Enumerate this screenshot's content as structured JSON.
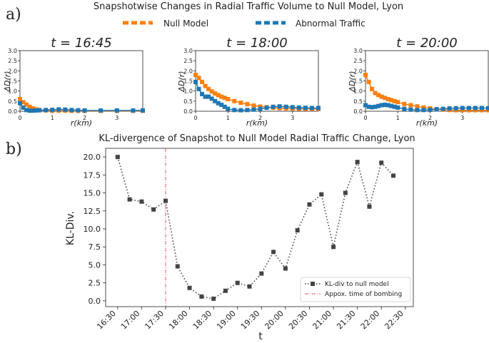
{
  "panel_a_label": "a)",
  "panel_b_label": "b)",
  "colors": {
    "null_model": "#ff7f0e",
    "abnormal": "#1f77b4",
    "kl_line": "#444444",
    "bombing": "#e8585a"
  },
  "chart_data": [
    {
      "type": "line",
      "title": "Snapshotwise Changes in Radial Traffic Volume to Null Model, Lyon",
      "legend": [
        "Null Model",
        "Abnormal Traffic"
      ],
      "xlabel": "r(km)",
      "ylabel": "ΔD(r)",
      "xlim": [
        0,
        3.8
      ],
      "ylim": [
        0,
        3.0
      ],
      "xticks": [
        "0",
        "1",
        "2",
        "3"
      ],
      "yticks": [
        "0.0",
        "0.5",
        "1.0",
        "1.5",
        "2.0",
        "2.5",
        "3.0"
      ],
      "subplots": [
        {
          "label": "t = 16:45",
          "x": [
            0.0,
            0.1,
            0.2,
            0.3,
            0.4,
            0.5,
            0.6,
            0.8,
            1.0,
            1.2,
            1.4,
            1.6,
            1.8,
            2.0,
            2.5,
            3.0,
            3.5,
            3.8
          ],
          "series": [
            {
              "name": "Null Model",
              "values": [
                0.6,
                0.45,
                0.33,
                0.22,
                0.14,
                0.09,
                0.06,
                0.04,
                0.03,
                0.03,
                0.03,
                0.02,
                0.02,
                0.02,
                0.02,
                0.02,
                0.02,
                0.02
              ]
            },
            {
              "name": "Abnormal Traffic",
              "values": [
                0.4,
                0.18,
                0.06,
                0.03,
                0.03,
                0.04,
                0.05,
                0.06,
                0.07,
                0.09,
                0.08,
                0.06,
                0.05,
                0.04,
                0.04,
                0.04,
                0.04,
                0.04
              ]
            }
          ]
        },
        {
          "label": "t = 18:00",
          "x": [
            0.0,
            0.1,
            0.2,
            0.3,
            0.4,
            0.5,
            0.6,
            0.7,
            0.8,
            0.9,
            1.0,
            1.2,
            1.4,
            1.6,
            1.8,
            2.0,
            2.2,
            2.4,
            2.6,
            2.8,
            3.0,
            3.2,
            3.4,
            3.6,
            3.8
          ],
          "series": [
            {
              "name": "Null Model",
              "values": [
                1.8,
                1.65,
                1.45,
                1.25,
                1.1,
                0.98,
                0.88,
                0.8,
                0.72,
                0.66,
                0.6,
                0.5,
                0.42,
                0.35,
                0.28,
                0.23,
                0.2,
                0.17,
                0.15,
                0.14,
                0.13,
                0.12,
                0.12,
                0.11,
                0.11
              ]
            },
            {
              "name": "Abnormal Traffic",
              "values": [
                1.45,
                1.1,
                0.85,
                0.72,
                0.72,
                0.62,
                0.5,
                0.4,
                0.32,
                0.22,
                0.12,
                0.06,
                0.05,
                0.06,
                0.08,
                0.12,
                0.17,
                0.22,
                0.24,
                0.22,
                0.2,
                0.18,
                0.17,
                0.16,
                0.16
              ]
            }
          ]
        },
        {
          "label": "t = 20:00",
          "x": [
            0.0,
            0.1,
            0.2,
            0.3,
            0.4,
            0.5,
            0.6,
            0.7,
            0.8,
            0.9,
            1.0,
            1.2,
            1.4,
            1.6,
            1.8,
            2.0,
            2.2,
            2.4,
            2.6,
            2.8,
            3.0,
            3.2,
            3.4,
            3.6,
            3.8
          ],
          "series": [
            {
              "name": "Null Model",
              "values": [
                1.8,
                1.45,
                1.1,
                0.9,
                0.8,
                0.72,
                0.66,
                0.6,
                0.55,
                0.5,
                0.45,
                0.36,
                0.3,
                0.24,
                0.18,
                0.14,
                0.1,
                0.08,
                0.06,
                0.05,
                0.05,
                0.05,
                0.05,
                0.05,
                0.05
              ]
            },
            {
              "name": "Abnormal Traffic",
              "values": [
                0.3,
                0.22,
                0.2,
                0.22,
                0.26,
                0.3,
                0.32,
                0.3,
                0.26,
                0.22,
                0.18,
                0.12,
                0.08,
                0.06,
                0.06,
                0.07,
                0.1,
                0.12,
                0.14,
                0.15,
                0.16,
                0.16,
                0.16,
                0.16,
                0.15
              ]
            }
          ]
        }
      ]
    },
    {
      "type": "line",
      "title": "KL-divergence of Snapshot to Null Model Radial Traffic Change, Lyon",
      "xlabel": "t",
      "ylabel": "KL-Div.",
      "ylim": [
        -0.8,
        21.2
      ],
      "yticks": [
        "0.0",
        "2.5",
        "5.0",
        "7.5",
        "10.0",
        "12.5",
        "15.0",
        "17.5",
        "20.0"
      ],
      "xticks": [
        "16:30",
        "17:00",
        "17:30",
        "18:00",
        "18:30",
        "19:00",
        "19:30",
        "20:00",
        "20:30",
        "21:00",
        "21:30",
        "22:00",
        "22:30"
      ],
      "xlim_minutes": [
        975,
        1360
      ],
      "x_minutes": [
        990,
        1005,
        1020,
        1035,
        1050,
        1065,
        1080,
        1095,
        1110,
        1125,
        1140,
        1155,
        1170,
        1185,
        1200,
        1215,
        1230,
        1245,
        1260,
        1275,
        1290,
        1305,
        1320,
        1335
      ],
      "series": [
        {
          "name": "KL-div to null model",
          "values": [
            20.0,
            14.1,
            13.8,
            12.7,
            13.9,
            4.8,
            1.8,
            0.6,
            0.3,
            1.4,
            2.5,
            2.0,
            3.8,
            6.8,
            4.5,
            9.8,
            13.4,
            14.8,
            7.5,
            15.0,
            19.3,
            13.1,
            19.2,
            17.4
          ]
        }
      ],
      "vline": {
        "name": "Appox. time of bombing",
        "x_minutes": 1050
      },
      "legend": [
        "KL-div to null model",
        "Appox. time of bombing"
      ]
    }
  ]
}
